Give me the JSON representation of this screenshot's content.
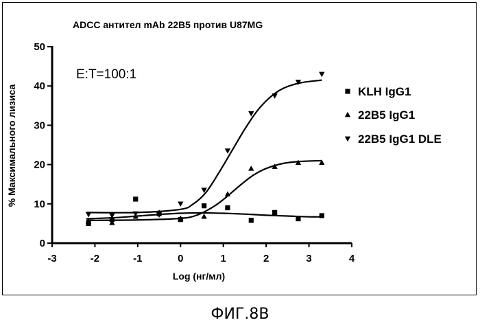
{
  "chart_data": {
    "type": "scatter",
    "title": "ADCC антител mAb 22B5 против U87MG",
    "xlabel": "Log (нг/мл)",
    "ylabel": "% Максимального лизиса",
    "xlim": [
      -3,
      4
    ],
    "ylim": [
      0,
      50
    ],
    "x_ticks": [
      "-3",
      "-2",
      "-1",
      "0",
      "1",
      "2",
      "3",
      "4"
    ],
    "y_ticks": [
      "0",
      "10",
      "20",
      "30",
      "40",
      "50"
    ],
    "annotation": "E:T=100:1",
    "legend_position": "right",
    "series": [
      {
        "name": "KLH IgG1",
        "marker": "square",
        "points": [
          [
            -2.15,
            5.0
          ],
          [
            -1.6,
            6.0
          ],
          [
            -1.05,
            11.2
          ],
          [
            -0.5,
            7.5
          ],
          [
            0.0,
            6.0
          ],
          [
            0.55,
            9.5
          ],
          [
            1.1,
            9.0
          ],
          [
            1.65,
            5.8
          ],
          [
            2.2,
            7.8
          ],
          [
            2.75,
            6.2
          ],
          [
            3.3,
            7.0
          ]
        ],
        "fit": [
          [
            -2.2,
            6.2
          ],
          [
            -1.5,
            6.5
          ],
          [
            -1.0,
            6.9
          ],
          [
            -0.5,
            7.3
          ],
          [
            0.0,
            7.6
          ],
          [
            0.5,
            7.7
          ],
          [
            1.0,
            7.6
          ],
          [
            1.5,
            7.4
          ],
          [
            2.0,
            7.1
          ],
          [
            2.5,
            6.9
          ],
          [
            3.0,
            6.7
          ],
          [
            3.3,
            6.7
          ]
        ]
      },
      {
        "name": "22B5 IgG1",
        "marker": "triangle-up",
        "points": [
          [
            -2.15,
            5.5
          ],
          [
            -1.6,
            5.2
          ],
          [
            -1.05,
            6.8
          ],
          [
            -0.5,
            7.8
          ],
          [
            0.0,
            6.3
          ],
          [
            0.55,
            6.8
          ],
          [
            1.1,
            12.5
          ],
          [
            1.65,
            19.0
          ],
          [
            2.2,
            19.5
          ],
          [
            2.75,
            20.5
          ],
          [
            3.3,
            20.5
          ]
        ],
        "fit": [
          [
            -2.2,
            5.8
          ],
          [
            -1.0,
            5.9
          ],
          [
            0.0,
            6.3
          ],
          [
            0.4,
            7.2
          ],
          [
            0.8,
            9.5
          ],
          [
            1.1,
            12.0
          ],
          [
            1.4,
            14.8
          ],
          [
            1.7,
            17.3
          ],
          [
            2.0,
            19.0
          ],
          [
            2.4,
            20.3
          ],
          [
            2.8,
            20.8
          ],
          [
            3.3,
            21.0
          ]
        ]
      },
      {
        "name": "22B5 IgG1 DLE",
        "marker": "triangle-down",
        "points": [
          [
            -2.15,
            7.3
          ],
          [
            -1.6,
            7.0
          ],
          [
            -1.05,
            7.5
          ],
          [
            -0.5,
            7.2
          ],
          [
            0.0,
            10.0
          ],
          [
            0.55,
            13.5
          ],
          [
            1.1,
            23.5
          ],
          [
            1.65,
            33.0
          ],
          [
            2.2,
            37.5
          ],
          [
            2.75,
            41.0
          ],
          [
            3.3,
            43.0
          ]
        ],
        "fit": [
          [
            -2.2,
            7.8
          ],
          [
            -1.0,
            7.8
          ],
          [
            0.0,
            8.6
          ],
          [
            0.3,
            10.0
          ],
          [
            0.6,
            13.0
          ],
          [
            0.9,
            18.0
          ],
          [
            1.2,
            23.5
          ],
          [
            1.5,
            29.0
          ],
          [
            1.8,
            33.8
          ],
          [
            2.1,
            37.2
          ],
          [
            2.4,
            39.4
          ],
          [
            2.8,
            40.8
          ],
          [
            3.3,
            41.5
          ]
        ]
      }
    ]
  },
  "caption": "ФИГ.8B"
}
